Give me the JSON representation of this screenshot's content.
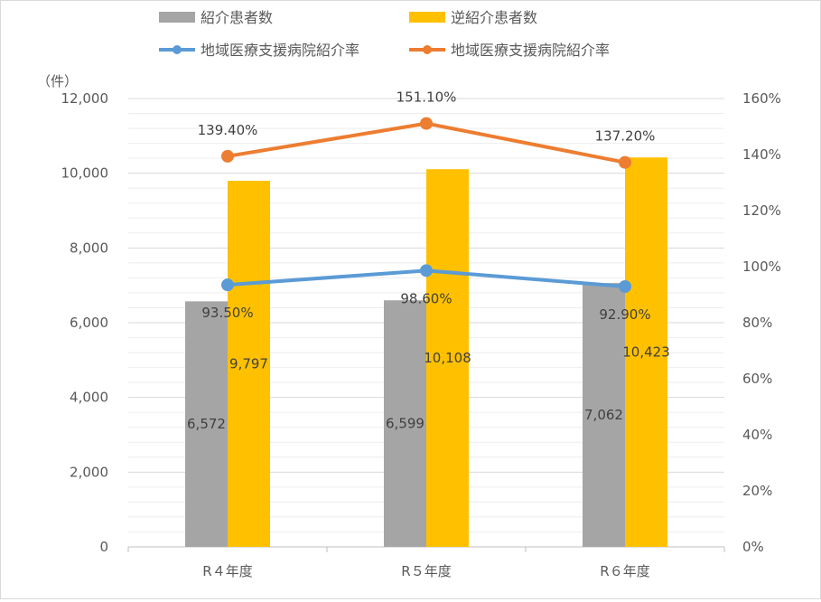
{
  "chart_data": {
    "type": "bar",
    "unit_label": "（件）",
    "categories": [
      "R４年度",
      "R５年度",
      "R６年度"
    ],
    "series": [
      {
        "name": "紹介患者数",
        "kind": "bar",
        "axis": "left",
        "color": "#a5a5a5",
        "values": [
          6572,
          6599,
          7062
        ],
        "labels": [
          "6,572",
          "6,599",
          "7,062"
        ]
      },
      {
        "name": "逆紹介患者数",
        "kind": "bar",
        "axis": "left",
        "color": "#ffc000",
        "values": [
          9797,
          10108,
          10423
        ],
        "labels": [
          "9,797",
          "10,108",
          "10,423"
        ]
      },
      {
        "name": "地域医療支援病院紹介率",
        "kind": "line",
        "axis": "right",
        "color": "#5b9bd5",
        "values": [
          93.5,
          98.6,
          92.9
        ],
        "labels": [
          "93.50%",
          "98.60%",
          "92.90%"
        ]
      },
      {
        "name": "地域医療支援病院紹介率",
        "kind": "line",
        "axis": "right",
        "color": "#ed7d31",
        "values": [
          139.4,
          151.1,
          137.2
        ],
        "labels": [
          "139.40%",
          "151.10%",
          "137.20%"
        ]
      }
    ],
    "y_left": {
      "min": 0,
      "max": 12000,
      "ticks": [
        "0",
        "2,000",
        "4,000",
        "6,000",
        "8,000",
        "10,000",
        "12,000"
      ]
    },
    "y_right": {
      "min": 0,
      "max": 160,
      "ticks": [
        "0%",
        "20%",
        "40%",
        "60%",
        "80%",
        "100%",
        "120%",
        "140%",
        "160%"
      ]
    },
    "grid": true,
    "legend": "top"
  }
}
